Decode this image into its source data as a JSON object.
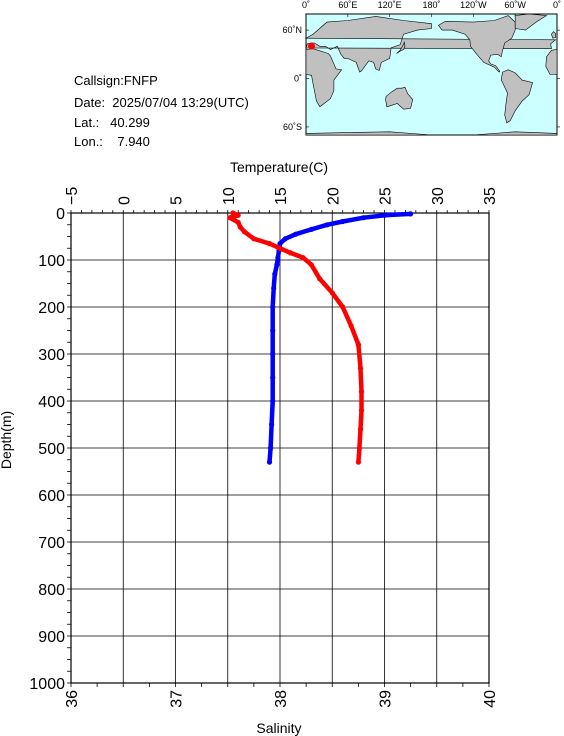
{
  "meta": {
    "callsign": "Callsign:FNFP",
    "date": "Date:  2025/07/04 13:29(UTC)",
    "lat": "Lat.:   40.299",
    "lon": "Lon.:    7.940"
  },
  "map": {
    "lon_labels": [
      "0˚",
      "60˚E",
      "120˚E",
      "180˚",
      "120˚W",
      "60˚W",
      "0˚"
    ],
    "lat_labels": [
      "60˚N",
      "0˚",
      "60˚S"
    ],
    "station": {
      "lon": 7.94,
      "lat": 40.299
    },
    "colors": {
      "ocean": "#ccffff",
      "land": "#c0c0c0",
      "marker": "#ff0000"
    }
  },
  "chart_data": {
    "type": "line",
    "top_axis": {
      "label": "Temperature(C)",
      "range": [
        -5,
        35
      ],
      "ticks": [
        "−5",
        "0",
        "5",
        "10",
        "15",
        "20",
        "25",
        "30",
        "35"
      ]
    },
    "bottom_axis": {
      "label": "Salinity",
      "range": [
        36,
        40
      ],
      "ticks": [
        "36",
        "37",
        "38",
        "39",
        "40"
      ]
    },
    "left_axis": {
      "label": "Depth(m)",
      "range": [
        0,
        1000
      ],
      "inverted": true,
      "ticks": [
        "0",
        "100",
        "200",
        "300",
        "400",
        "500",
        "600",
        "700",
        "800",
        "900",
        "1000"
      ]
    },
    "grid": true,
    "series": [
      {
        "axis": "temperature",
        "color": "#0000ff",
        "points": [
          [
            27.5,
            2
          ],
          [
            25,
            5
          ],
          [
            23,
            10
          ],
          [
            21,
            18
          ],
          [
            19.5,
            25
          ],
          [
            18,
            35
          ],
          [
            16.5,
            45
          ],
          [
            15.5,
            55
          ],
          [
            15,
            65
          ],
          [
            14.9,
            80
          ],
          [
            14.8,
            95
          ],
          [
            14.7,
            110
          ],
          [
            14.5,
            130
          ],
          [
            14.4,
            160
          ],
          [
            14.3,
            200
          ],
          [
            14.3,
            250
          ],
          [
            14.3,
            300
          ],
          [
            14.3,
            350
          ],
          [
            14.3,
            400
          ],
          [
            14.2,
            450
          ],
          [
            14.1,
            500
          ],
          [
            14.0,
            530
          ]
        ]
      },
      {
        "axis": "salinity",
        "color": "#ff0000",
        "points": [
          [
            37.55,
            0
          ],
          [
            37.6,
            5
          ],
          [
            37.52,
            10
          ],
          [
            37.6,
            20
          ],
          [
            37.62,
            30
          ],
          [
            37.66,
            40
          ],
          [
            37.75,
            55
          ],
          [
            37.9,
            65
          ],
          [
            38.0,
            75
          ],
          [
            38.1,
            85
          ],
          [
            38.22,
            95
          ],
          [
            38.3,
            110
          ],
          [
            38.38,
            140
          ],
          [
            38.5,
            170
          ],
          [
            38.6,
            200
          ],
          [
            38.68,
            240
          ],
          [
            38.75,
            280
          ],
          [
            38.77,
            330
          ],
          [
            38.78,
            380
          ],
          [
            38.78,
            420
          ],
          [
            38.77,
            460
          ],
          [
            38.76,
            500
          ],
          [
            38.75,
            530
          ]
        ]
      }
    ]
  }
}
